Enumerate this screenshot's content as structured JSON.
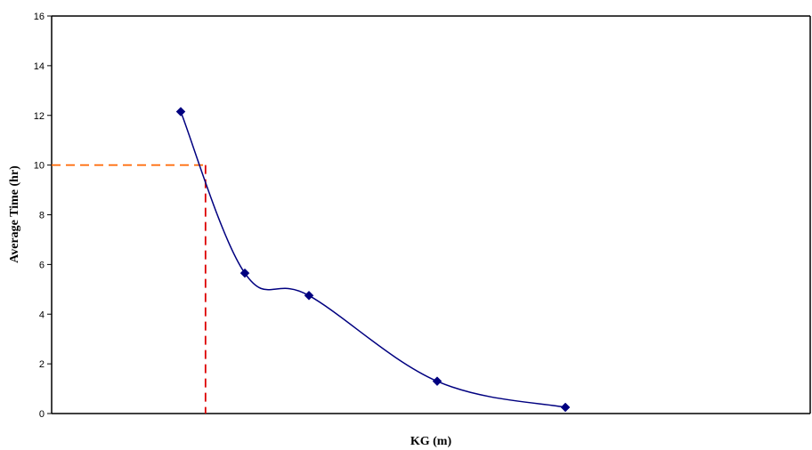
{
  "chart_data": {
    "type": "line",
    "title": "",
    "xlabel": "KG (m)",
    "ylabel": "Average Time (hr)",
    "ylim": [
      0,
      16
    ],
    "yticks": [
      0,
      2,
      4,
      6,
      8,
      10,
      12,
      14,
      16
    ],
    "grid": false,
    "legend": "none",
    "series": [
      {
        "x": [
          1,
          2,
          3,
          5,
          7
        ],
        "values": [
          12.15,
          5.65,
          4.75,
          1.3,
          0.25
        ],
        "color": "#000080",
        "marker": "diamond",
        "smooth": true
      }
    ],
    "reference_lines": [
      {
        "orientation": "horizontal",
        "y": 10,
        "color": "#FF6600",
        "style": "dashed"
      },
      {
        "orientation": "vertical",
        "y": 10,
        "color": "#DD0000",
        "style": "dashed"
      }
    ]
  }
}
